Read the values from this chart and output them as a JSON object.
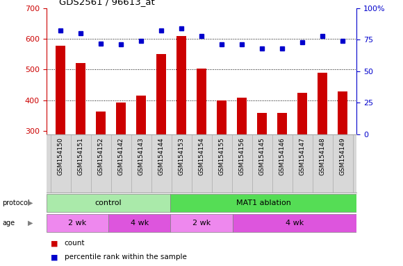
{
  "title": "GDS2561 / 96613_at",
  "categories": [
    "GSM154150",
    "GSM154151",
    "GSM154152",
    "GSM154142",
    "GSM154143",
    "GSM154144",
    "GSM154153",
    "GSM154154",
    "GSM154155",
    "GSM154156",
    "GSM154145",
    "GSM154146",
    "GSM154147",
    "GSM154148",
    "GSM154149"
  ],
  "bar_values": [
    578,
    522,
    365,
    393,
    415,
    550,
    610,
    504,
    400,
    408,
    360,
    360,
    425,
    490,
    430
  ],
  "percentile_values": [
    82,
    80,
    72,
    71,
    74,
    82,
    84,
    78,
    71,
    71,
    68,
    68,
    73,
    78,
    74
  ],
  "bar_color": "#cc0000",
  "dot_color": "#0000cc",
  "ylim_left": [
    290,
    700
  ],
  "ylim_right": [
    0,
    100
  ],
  "yticks_left": [
    300,
    400,
    500,
    600,
    700
  ],
  "yticks_right": [
    0,
    25,
    50,
    75,
    100
  ],
  "ytick_right_labels": [
    "0",
    "25",
    "50",
    "75",
    "100%"
  ],
  "grid_values": [
    400,
    500,
    600
  ],
  "protocol_labels": [
    "control",
    "MAT1 ablation"
  ],
  "protocol_color_control": "#aaeaaa",
  "protocol_color_mat1": "#55dd55",
  "age_color_light": "#ee88ee",
  "age_color_dark": "#dd55dd",
  "bar_bottom": 290,
  "plot_bg_color": "#ffffff",
  "label_bg_color": "#d8d8d8",
  "label_outline_color": "#aaaaaa",
  "background_color": "#ffffff"
}
